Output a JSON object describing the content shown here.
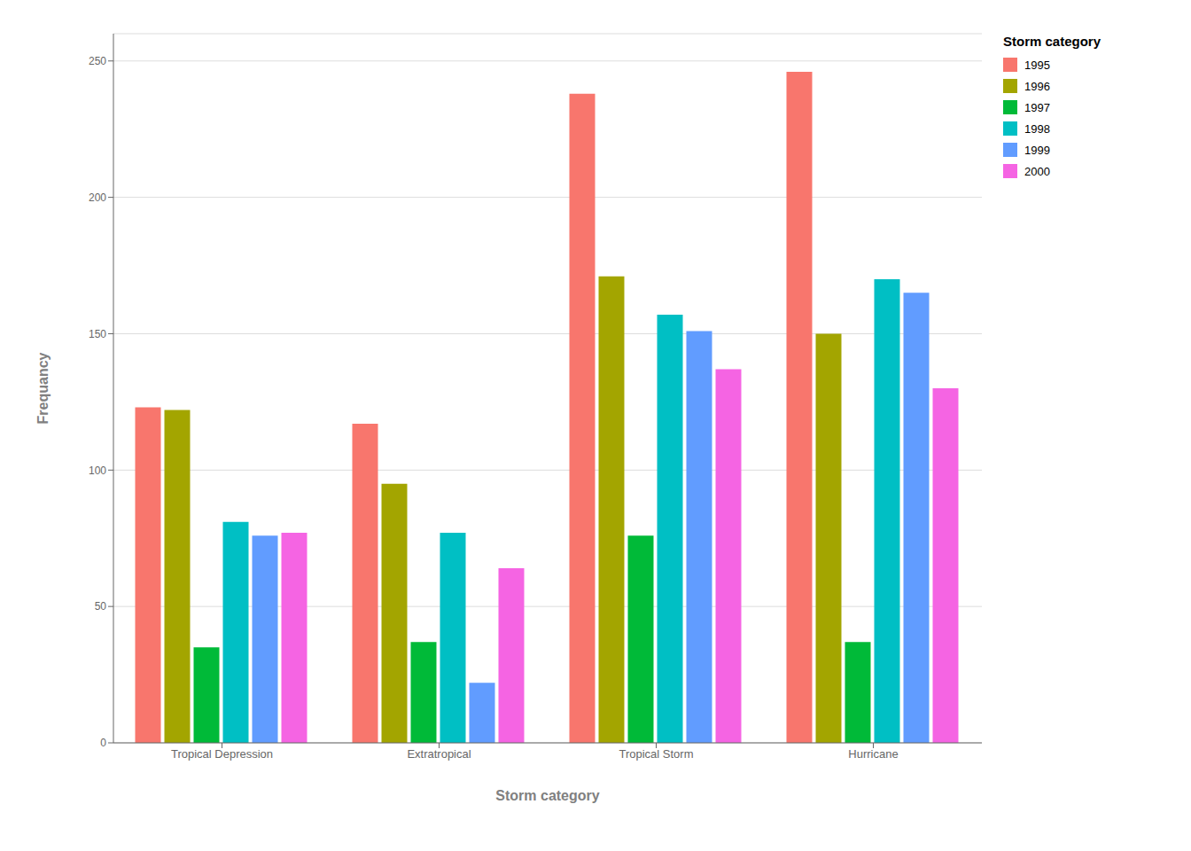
{
  "chart_data": {
    "type": "bar",
    "categories": [
      "Tropical Depression",
      "Extratropical",
      "Tropical Storm",
      "Hurricane"
    ],
    "series": [
      {
        "name": "1995",
        "color": "#F8766D",
        "values": [
          123,
          117,
          238,
          246
        ]
      },
      {
        "name": "1996",
        "color": "#A3A500",
        "values": [
          122,
          95,
          171,
          150
        ]
      },
      {
        "name": "1997",
        "color": "#00BA38",
        "values": [
          35,
          37,
          76,
          37
        ]
      },
      {
        "name": "1998",
        "color": "#00BFC4",
        "values": [
          81,
          77,
          157,
          170
        ]
      },
      {
        "name": "1999",
        "color": "#619CFF",
        "values": [
          76,
          22,
          151,
          165
        ]
      },
      {
        "name": "2000",
        "color": "#F564E3",
        "values": [
          77,
          64,
          137,
          130
        ]
      }
    ],
    "xlabel": "Storm category",
    "ylabel": "Frequancy",
    "legend_title": "Storm category",
    "ylim": [
      0,
      260
    ],
    "yticks": [
      0,
      50,
      100,
      150,
      200,
      250
    ],
    "grid": true,
    "legend": "right"
  }
}
